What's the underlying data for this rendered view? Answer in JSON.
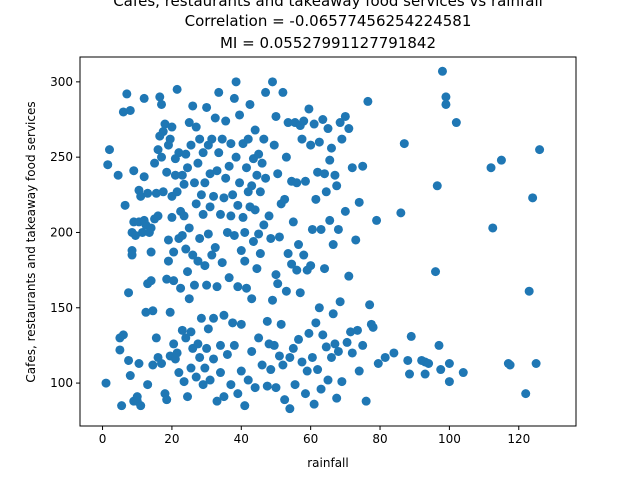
{
  "chart_data": {
    "type": "scatter",
    "title": "Cafes, restaurants and takeaway food services vs rainfall",
    "subtitle_lines": [
      "Correlation = -0.06577456254224581",
      "MI = 0.05527991127791842"
    ],
    "xlabel": "rainfall",
    "ylabel": "Cafes, restaurants and takeaway food services",
    "xlim": [
      -6.5,
      136.5
    ],
    "ylim": [
      71.5,
      316.5
    ],
    "xticks": [
      0,
      20,
      40,
      60,
      80,
      100,
      120
    ],
    "yticks": [
      100,
      150,
      200,
      250,
      300
    ],
    "grid": false,
    "marker_color": "#1f77b4",
    "points": [
      [
        1,
        100
      ],
      [
        1.5,
        245
      ],
      [
        2,
        255
      ],
      [
        4.5,
        238
      ],
      [
        5,
        130
      ],
      [
        5,
        122
      ],
      [
        5.5,
        85
      ],
      [
        6,
        280
      ],
      [
        6,
        132
      ],
      [
        6.5,
        218
      ],
      [
        7,
        292
      ],
      [
        7.5,
        160
      ],
      [
        7.5,
        115
      ],
      [
        8,
        281
      ],
      [
        8,
        105
      ],
      [
        8.5,
        200
      ],
      [
        8.5,
        188
      ],
      [
        8.5,
        185
      ],
      [
        9,
        241
      ],
      [
        9,
        207
      ],
      [
        9,
        88
      ],
      [
        9.5,
        198
      ],
      [
        10,
        91
      ],
      [
        10,
        88
      ],
      [
        10.5,
        207
      ],
      [
        10.5,
        228
      ],
      [
        10.5,
        113
      ],
      [
        11,
        224
      ],
      [
        11,
        85
      ],
      [
        11.5,
        200
      ],
      [
        12,
        289
      ],
      [
        12,
        208
      ],
      [
        12,
        237
      ],
      [
        12.5,
        205
      ],
      [
        12.5,
        147
      ],
      [
        13,
        166
      ],
      [
        13,
        226
      ],
      [
        13,
        99
      ],
      [
        13.5,
        200
      ],
      [
        14,
        187
      ],
      [
        14,
        203
      ],
      [
        14,
        168
      ],
      [
        14.5,
        112
      ],
      [
        14.5,
        148
      ],
      [
        15,
        209
      ],
      [
        15,
        246
      ],
      [
        15.5,
        226
      ],
      [
        15.5,
        130
      ],
      [
        16,
        255
      ],
      [
        16,
        211
      ],
      [
        16,
        117
      ],
      [
        16.5,
        264
      ],
      [
        16.5,
        290
      ],
      [
        17,
        285
      ],
      [
        17,
        250
      ],
      [
        17,
        113
      ],
      [
        17.5,
        267
      ],
      [
        17.5,
        227
      ],
      [
        18,
        272
      ],
      [
        18,
        93
      ],
      [
        18.5,
        240
      ],
      [
        18.5,
        169
      ],
      [
        18.5,
        89
      ],
      [
        19,
        258
      ],
      [
        19,
        195
      ],
      [
        19,
        181
      ],
      [
        19.5,
        262
      ],
      [
        19.5,
        147
      ],
      [
        19.5,
        118
      ],
      [
        20,
        270
      ],
      [
        20,
        224
      ],
      [
        20,
        210
      ],
      [
        20.5,
        187
      ],
      [
        20.5,
        168
      ],
      [
        20.5,
        126
      ],
      [
        21,
        249
      ],
      [
        21,
        238
      ],
      [
        21,
        116
      ],
      [
        21.5,
        295
      ],
      [
        21.5,
        227
      ],
      [
        21.5,
        120
      ],
      [
        22,
        253
      ],
      [
        22,
        196
      ],
      [
        22,
        107
      ],
      [
        22.5,
        214
      ],
      [
        22.5,
        163
      ],
      [
        23,
        238
      ],
      [
        23,
        198
      ],
      [
        23,
        135
      ],
      [
        23.5,
        232
      ],
      [
        23.5,
        211
      ],
      [
        23.5,
        101
      ],
      [
        24,
        252
      ],
      [
        24,
        189
      ],
      [
        24,
        130
      ],
      [
        24.5,
        243
      ],
      [
        24.5,
        174
      ],
      [
        24.5,
        91
      ],
      [
        25,
        273
      ],
      [
        25,
        203
      ],
      [
        25,
        156
      ],
      [
        25.5,
        258
      ],
      [
        25.5,
        134
      ],
      [
        25.5,
        110
      ],
      [
        26,
        284
      ],
      [
        26,
        185
      ],
      [
        26,
        123
      ],
      [
        26.5,
        233
      ],
      [
        26.5,
        165
      ],
      [
        27,
        270
      ],
      [
        27,
        219
      ],
      [
        27,
        104
      ],
      [
        27.5,
        246
      ],
      [
        27.5,
        181
      ],
      [
        27.5,
        126
      ],
      [
        28,
        262
      ],
      [
        28,
        196
      ],
      [
        28,
        117
      ],
      [
        28.5,
        225
      ],
      [
        28.5,
        143
      ],
      [
        29,
        253
      ],
      [
        29,
        212
      ],
      [
        29,
        99
      ],
      [
        29.5,
        233
      ],
      [
        29.5,
        178
      ],
      [
        29.5,
        110
      ],
      [
        30,
        283
      ],
      [
        30,
        165
      ],
      [
        30,
        123
      ],
      [
        30.5,
        258
      ],
      [
        30.5,
        199
      ],
      [
        30.5,
        136
      ],
      [
        31,
        239
      ],
      [
        31,
        217
      ],
      [
        31,
        102
      ],
      [
        31.5,
        262
      ],
      [
        31.5,
        185
      ],
      [
        32,
        224
      ],
      [
        32,
        143
      ],
      [
        32,
        116
      ],
      [
        32.5,
        276
      ],
      [
        32.5,
        190
      ],
      [
        33,
        241
      ],
      [
        33,
        164
      ],
      [
        33,
        88
      ],
      [
        33.5,
        293
      ],
      [
        33.5,
        253
      ],
      [
        34,
        212
      ],
      [
        34,
        125
      ],
      [
        34,
        107
      ],
      [
        34.5,
        262
      ],
      [
        34.5,
        180
      ],
      [
        35,
        223
      ],
      [
        35,
        145
      ],
      [
        35,
        91
      ],
      [
        35.5,
        274
      ],
      [
        35.5,
        236
      ],
      [
        36,
        200
      ],
      [
        36,
        119
      ],
      [
        36.5,
        244
      ],
      [
        36.5,
        170
      ],
      [
        37,
        259
      ],
      [
        37,
        211
      ],
      [
        37,
        99
      ],
      [
        37.5,
        225
      ],
      [
        37.5,
        140
      ],
      [
        38,
        289
      ],
      [
        38,
        198
      ],
      [
        38,
        125
      ],
      [
        38.5,
        300
      ],
      [
        38.5,
        250
      ],
      [
        39,
        218
      ],
      [
        39,
        164
      ],
      [
        39,
        93
      ],
      [
        39.5,
        278
      ],
      [
        39.5,
        233
      ],
      [
        40,
        188
      ],
      [
        40,
        139
      ],
      [
        40,
        108
      ],
      [
        40.5,
        259
      ],
      [
        40.5,
        210
      ],
      [
        41,
        200
      ],
      [
        41,
        181
      ],
      [
        41,
        85
      ],
      [
        41.5,
        243
      ],
      [
        41.5,
        163
      ],
      [
        42,
        262
      ],
      [
        42,
        227
      ],
      [
        42,
        102
      ],
      [
        42.5,
        285
      ],
      [
        42.5,
        217
      ],
      [
        43,
        231
      ],
      [
        43,
        156
      ],
      [
        43,
        121
      ],
      [
        43.5,
        249
      ],
      [
        43.5,
        194
      ],
      [
        44,
        268
      ],
      [
        44,
        215
      ],
      [
        44,
        97
      ],
      [
        44.5,
        238
      ],
      [
        44.5,
        176
      ],
      [
        45,
        252
      ],
      [
        45,
        199
      ],
      [
        45,
        130
      ],
      [
        45.5,
        227
      ],
      [
        45.5,
        186
      ],
      [
        46,
        246
      ],
      [
        46,
        112
      ],
      [
        46.5,
        262
      ],
      [
        46.5,
        205
      ],
      [
        47,
        236
      ],
      [
        47,
        293
      ],
      [
        47.5,
        141
      ],
      [
        47.5,
        98
      ],
      [
        48,
        211
      ],
      [
        48,
        126
      ],
      [
        48.5,
        196
      ],
      [
        48.5,
        109
      ],
      [
        49,
        300
      ],
      [
        49,
        155
      ],
      [
        49.5,
        258
      ],
      [
        49.5,
        125
      ],
      [
        50,
        277
      ],
      [
        50,
        172
      ],
      [
        50,
        97
      ],
      [
        50.5,
        239
      ],
      [
        50.5,
        166
      ],
      [
        51,
        197
      ],
      [
        51,
        118
      ],
      [
        51.5,
        219
      ],
      [
        51.5,
        139
      ],
      [
        52,
        293
      ],
      [
        52,
        112
      ],
      [
        52.5,
        222
      ],
      [
        52.5,
        89
      ],
      [
        53,
        250
      ],
      [
        53,
        161
      ],
      [
        53.5,
        273
      ],
      [
        53.5,
        186
      ],
      [
        54,
        117
      ],
      [
        54,
        83
      ],
      [
        54.5,
        234
      ],
      [
        54.5,
        179
      ],
      [
        55,
        207
      ],
      [
        55,
        123
      ],
      [
        55.5,
        273
      ],
      [
        55.5,
        99
      ],
      [
        56,
        233
      ],
      [
        56,
        175
      ],
      [
        56.5,
        192
      ],
      [
        56.5,
        129
      ],
      [
        57,
        271
      ],
      [
        57,
        160
      ],
      [
        57.5,
        262
      ],
      [
        57.5,
        114
      ],
      [
        58,
        274
      ],
      [
        58,
        185
      ],
      [
        58.5,
        234
      ],
      [
        58.5,
        93
      ],
      [
        59,
        175
      ],
      [
        59,
        108
      ],
      [
        59.5,
        282
      ],
      [
        59.5,
        133
      ],
      [
        60,
        258
      ],
      [
        60,
        178
      ],
      [
        60.5,
        202
      ],
      [
        60.5,
        117
      ],
      [
        61,
        272
      ],
      [
        61,
        86
      ],
      [
        61.5,
        222
      ],
      [
        61.5,
        140
      ],
      [
        62,
        240
      ],
      [
        62,
        109
      ],
      [
        62.5,
        260
      ],
      [
        62.5,
        150
      ],
      [
        63,
        202
      ],
      [
        63,
        96
      ],
      [
        63.5,
        275
      ],
      [
        63.5,
        132
      ],
      [
        64,
        239
      ],
      [
        64,
        176
      ],
      [
        64.5,
        227
      ],
      [
        64.5,
        124
      ],
      [
        65,
        269
      ],
      [
        65,
        102
      ],
      [
        65.5,
        248
      ],
      [
        65.5,
        208
      ],
      [
        66,
        256
      ],
      [
        66,
        117
      ],
      [
        66.5,
        192
      ],
      [
        66.5,
        146
      ],
      [
        67,
        238
      ],
      [
        67,
        126
      ],
      [
        67.5,
        231
      ],
      [
        67.5,
        90
      ],
      [
        68,
        202
      ],
      [
        68,
        121
      ],
      [
        68.5,
        273
      ],
      [
        68.5,
        154
      ],
      [
        69,
        262
      ],
      [
        69,
        101
      ],
      [
        70,
        277
      ],
      [
        70,
        214
      ],
      [
        70.5,
        127
      ],
      [
        71,
        269
      ],
      [
        71,
        171
      ],
      [
        71.5,
        134
      ],
      [
        72,
        243
      ],
      [
        72,
        120
      ],
      [
        73,
        195
      ],
      [
        73.5,
        135
      ],
      [
        74,
        220
      ],
      [
        74,
        108
      ],
      [
        75,
        244
      ],
      [
        75,
        125
      ],
      [
        76,
        88
      ],
      [
        76.5,
        287
      ],
      [
        77,
        152
      ],
      [
        77.5,
        139
      ],
      [
        78,
        137
      ],
      [
        79,
        208
      ],
      [
        79.5,
        113
      ],
      [
        81.5,
        117
      ],
      [
        84,
        120
      ],
      [
        86,
        213
      ],
      [
        87,
        259
      ],
      [
        88,
        115
      ],
      [
        88.5,
        106
      ],
      [
        89,
        131
      ],
      [
        92,
        115
      ],
      [
        93,
        106
      ],
      [
        93,
        114
      ],
      [
        94,
        113
      ],
      [
        96,
        174
      ],
      [
        96.5,
        231
      ],
      [
        97,
        125
      ],
      [
        97.5,
        109
      ],
      [
        98,
        307
      ],
      [
        99,
        285
      ],
      [
        99,
        290
      ],
      [
        100,
        101
      ],
      [
        100,
        113
      ],
      [
        102,
        273
      ],
      [
        104,
        107
      ],
      [
        112,
        243
      ],
      [
        112.5,
        203
      ],
      [
        115,
        248
      ],
      [
        117,
        113
      ],
      [
        117.5,
        112
      ],
      [
        122,
        93
      ],
      [
        123,
        161
      ],
      [
        124,
        223
      ],
      [
        125,
        113
      ],
      [
        126,
        255
      ]
    ]
  }
}
